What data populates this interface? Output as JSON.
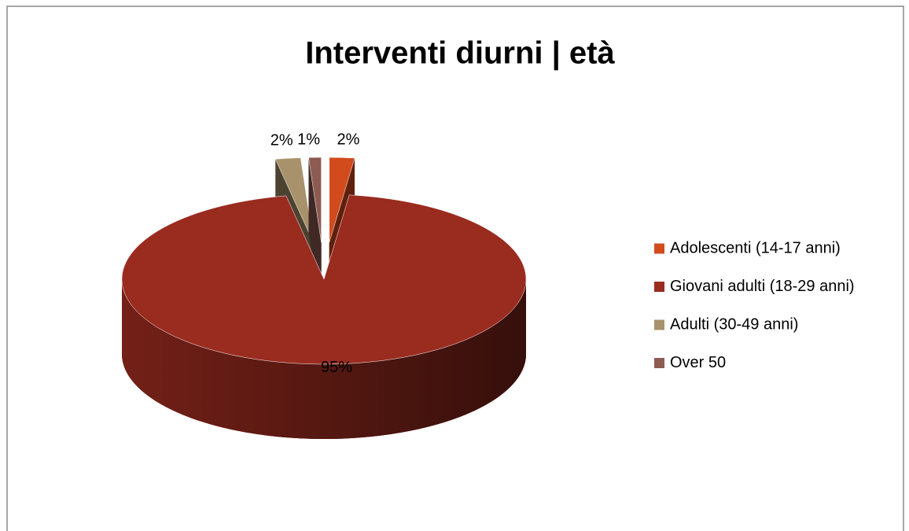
{
  "chart_data": {
    "type": "pie3d",
    "title": "Interventi diurni | età",
    "categories": [
      "Adolescenti (14-17 anni)",
      "Giovani adulti (18-29 anni)",
      "Adulti (30-49 anni)",
      "Over 50"
    ],
    "values": [
      2,
      95,
      2,
      1
    ],
    "value_labels": [
      "2%",
      "95%",
      "2%",
      "1%"
    ],
    "colors": [
      "#d24b1c",
      "#9a2b1f",
      "#a8926c",
      "#8e5b52"
    ],
    "legend": "right"
  }
}
